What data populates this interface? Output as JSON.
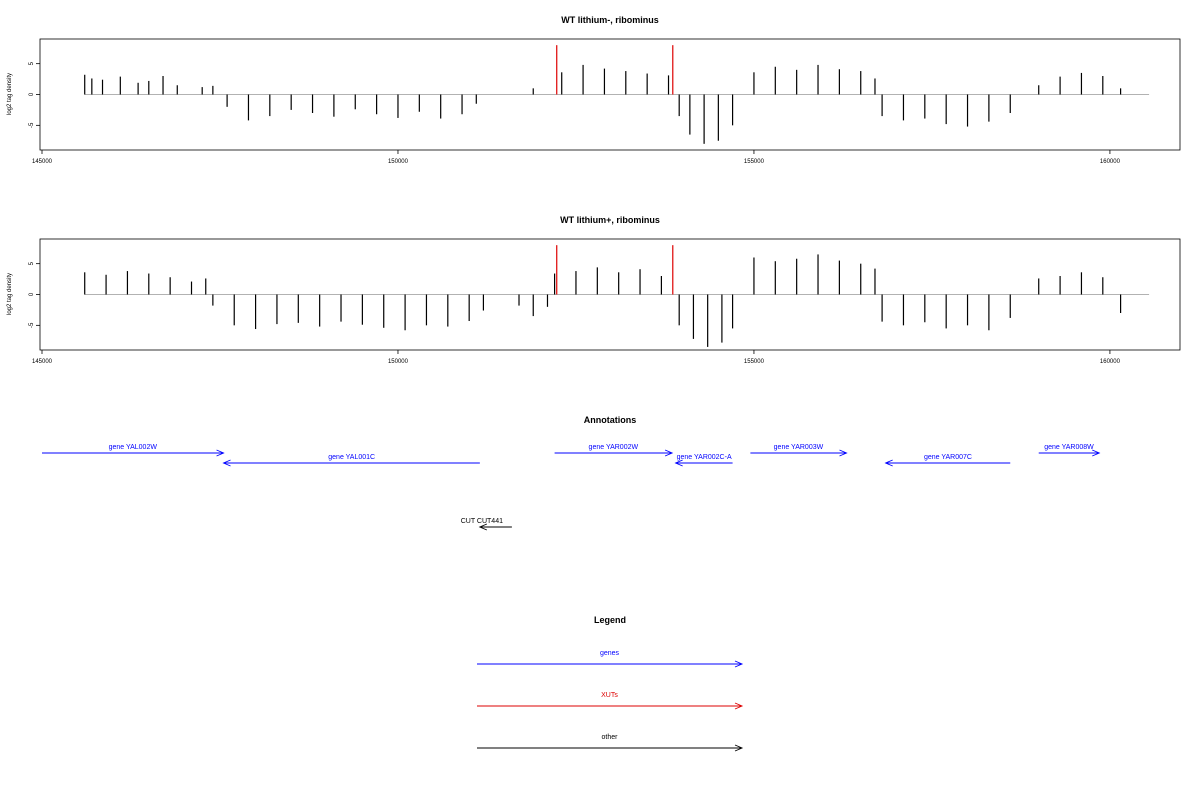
{
  "chart_data": [
    {
      "type": "bar",
      "title": "WT lithium-, ribominus",
      "ylabel": "log2 tag density",
      "xlabel": "",
      "xlim": [
        145000,
        160500
      ],
      "ylim": [
        -9,
        9
      ],
      "x_ticks": [
        145000,
        150000,
        155000,
        160000
      ],
      "y_ticks": [
        -5,
        0,
        5
      ],
      "grid": false,
      "series": [
        {
          "name": "",
          "x": [
            145600,
            145700,
            145850,
            146100,
            146350,
            146500,
            146700,
            146900,
            147250,
            147400
          ],
          "values": [
            3.2,
            2.6,
            2.4,
            2.9,
            1.9,
            2.2,
            3.0,
            1.5,
            1.2,
            1.4
          ]
        },
        {
          "name": "",
          "x": [
            147600,
            147900,
            148200,
            148500,
            148800,
            149100,
            149400,
            149700,
            150000,
            150300,
            150600,
            150900,
            151100
          ],
          "values": [
            -2.0,
            -4.2,
            -3.5,
            -2.5,
            -3.0,
            -3.6,
            -2.4,
            -3.2,
            -3.8,
            -2.8,
            -3.9,
            -3.2,
            -1.5
          ]
        },
        {
          "name": "",
          "x": [
            151900,
            152300,
            152600,
            152900,
            153200,
            153500,
            153800
          ],
          "values": [
            1.0,
            3.6,
            4.8,
            4.2,
            3.8,
            3.4,
            3.1
          ]
        },
        {
          "name": "",
          "x": [
            153950,
            154100,
            154300,
            154500,
            154700
          ],
          "values": [
            -3.5,
            -6.5,
            -8.0,
            -7.5,
            -5.0
          ]
        },
        {
          "name": "",
          "x": [
            155000,
            155300,
            155600,
            155900,
            156200,
            156500,
            156700
          ],
          "values": [
            3.6,
            4.5,
            4.0,
            4.8,
            4.1,
            3.8,
            2.6
          ]
        },
        {
          "name": "",
          "x": [
            156800,
            157100,
            157400,
            157700,
            158000,
            158300,
            158600
          ],
          "values": [
            -3.5,
            -4.2,
            -3.9,
            -4.8,
            -5.2,
            -4.4,
            -3.0
          ]
        },
        {
          "name": "",
          "x": [
            159000,
            159300,
            159600,
            159900,
            160150
          ],
          "values": [
            1.5,
            2.9,
            3.5,
            3.0,
            1.0
          ]
        }
      ],
      "markers": [
        {
          "name": "",
          "x": 152230,
          "value": 8,
          "color": "#dd0000"
        },
        {
          "name": "",
          "x": 153860,
          "value": 8,
          "color": "#dd0000"
        }
      ]
    },
    {
      "type": "bar",
      "title": "WT lithium+, ribominus",
      "ylabel": "log2 tag density",
      "xlabel": "",
      "xlim": [
        145000,
        160500
      ],
      "ylim": [
        -9,
        9
      ],
      "x_ticks": [
        145000,
        150000,
        155000,
        160000
      ],
      "y_ticks": [
        -5,
        0,
        5
      ],
      "grid": false,
      "series": [
        {
          "name": "",
          "x": [
            145600,
            145900,
            146200,
            146500,
            146800,
            147100,
            147300
          ],
          "values": [
            3.6,
            3.2,
            3.8,
            3.4,
            2.8,
            2.1,
            2.6
          ]
        },
        {
          "name": "",
          "x": [
            147400,
            147700,
            148000,
            148300,
            148600,
            148900,
            149200,
            149500,
            149800,
            150100,
            150400,
            150700,
            151000,
            151200
          ],
          "values": [
            -1.8,
            -5.0,
            -5.6,
            -4.8,
            -4.6,
            -5.2,
            -4.4,
            -4.9,
            -5.4,
            -5.8,
            -5.0,
            -5.2,
            -4.3,
            -2.6
          ]
        },
        {
          "name": "",
          "x": [
            151700,
            151900,
            152100
          ],
          "values": [
            -1.8,
            -3.5,
            -2.0
          ]
        },
        {
          "name": "",
          "x": [
            152200,
            152500,
            152800,
            153100,
            153400,
            153700
          ],
          "values": [
            3.4,
            3.8,
            4.4,
            3.6,
            4.1,
            3.0
          ]
        },
        {
          "name": "",
          "x": [
            153950,
            154150,
            154350,
            154550,
            154700
          ],
          "values": [
            -5.0,
            -7.2,
            -8.5,
            -7.8,
            -5.5
          ]
        },
        {
          "name": "",
          "x": [
            155000,
            155300,
            155600,
            155900,
            156200,
            156500,
            156700
          ],
          "values": [
            6.0,
            5.4,
            5.8,
            6.5,
            5.5,
            5.0,
            4.2
          ]
        },
        {
          "name": "",
          "x": [
            156800,
            157100,
            157400,
            157700,
            158000,
            158300,
            158600
          ],
          "values": [
            -4.4,
            -5.0,
            -4.5,
            -5.5,
            -5.0,
            -5.8,
            -3.8
          ]
        },
        {
          "name": "",
          "x": [
            159000,
            159300,
            159600,
            159900,
            160150
          ],
          "values": [
            2.6,
            3.0,
            3.6,
            2.8,
            -3.0
          ]
        }
      ],
      "markers": [
        {
          "name": "",
          "x": 152230,
          "value": 8,
          "color": "#dd0000"
        },
        {
          "name": "",
          "x": 153860,
          "value": 8,
          "color": "#dd0000"
        }
      ]
    }
  ],
  "annotations": {
    "title": "Annotations",
    "xlim": [
      145000,
      160500
    ],
    "items": [
      {
        "label": "gene YAL002W",
        "start": 145000,
        "end": 147550,
        "direction": "right",
        "row": 0,
        "color": "#0000ff"
      },
      {
        "label": "gene YAL001C",
        "start": 147550,
        "end": 151150,
        "direction": "left",
        "row": 1,
        "color": "#0000ff"
      },
      {
        "label": "gene YAR002W",
        "start": 152200,
        "end": 153850,
        "direction": "right",
        "row": 0,
        "color": "#0000ff"
      },
      {
        "label": "gene YAR002C-A",
        "start": 153900,
        "end": 154700,
        "direction": "left",
        "row": 1,
        "color": "#0000ff"
      },
      {
        "label": "gene YAR003W",
        "start": 154950,
        "end": 156300,
        "direction": "right",
        "row": 0,
        "color": "#0000ff"
      },
      {
        "label": "gene YAR007C",
        "start": 156850,
        "end": 158600,
        "direction": "left",
        "row": 1,
        "color": "#0000ff"
      },
      {
        "label": "gene YAR008W",
        "start": 159000,
        "end": 159850,
        "direction": "right",
        "row": 0,
        "color": "#0000ff"
      },
      {
        "label": "CUT CUT441",
        "start": 151150,
        "end": 151600,
        "direction": "left",
        "row": 2,
        "color": "#000000"
      }
    ]
  },
  "legend": {
    "title": "Legend",
    "items": [
      {
        "label": "genes",
        "color": "#0000ff"
      },
      {
        "label": "XUTs",
        "color": "#dd0000"
      },
      {
        "label": "other",
        "color": "#000000"
      }
    ]
  }
}
